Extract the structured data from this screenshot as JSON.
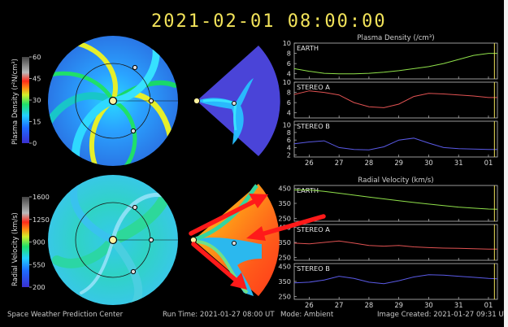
{
  "header": {
    "timestamp": "2021-02-01  08:00:00"
  },
  "colorbars": [
    {
      "title": "Plasma Density (r²N/cm³)",
      "ticks": [
        "60",
        "45",
        "30",
        "15",
        "0"
      ]
    },
    {
      "title": "Radial Velocity (km/s)",
      "ticks": [
        "1600",
        "1250",
        "900",
        "550",
        "200"
      ]
    }
  ],
  "chart_data": [
    {
      "type": "line",
      "title": "Plasma Density (/cm³)",
      "categories": [
        "26",
        "27",
        "28",
        "29",
        "30",
        "31",
        "01"
      ],
      "panels": [
        {
          "name": "EARTH",
          "color": "#8fe04a",
          "yticks": [
            "10",
            "8",
            "6",
            "4"
          ],
          "ylim": [
            3,
            10
          ],
          "x": [
            25.5,
            26.0,
            26.5,
            27.0,
            27.5,
            28.0,
            28.5,
            29.0,
            29.5,
            30.0,
            30.5,
            31.0,
            31.5,
            32.0,
            32.3
          ],
          "y": [
            5.0,
            4.5,
            4.1,
            4.0,
            4.0,
            4.1,
            4.3,
            4.6,
            5.0,
            5.4,
            6.0,
            6.8,
            7.6,
            8.0,
            8.0
          ]
        },
        {
          "name": "STEREO A",
          "color": "#e05252",
          "yticks": [
            "10",
            "8",
            "6",
            "4"
          ],
          "ylim": [
            3,
            10
          ],
          "x": [
            25.5,
            26.0,
            26.5,
            27.0,
            27.5,
            28.0,
            28.5,
            29.0,
            29.5,
            30.0,
            30.5,
            31.0,
            31.5,
            32.0,
            32.3
          ],
          "y": [
            7.6,
            8.3,
            8.0,
            7.5,
            6.0,
            5.2,
            5.0,
            5.7,
            7.2,
            7.8,
            7.7,
            7.5,
            7.3,
            7.0,
            7.0
          ]
        },
        {
          "name": "STEREO B",
          "color": "#5a5ae6",
          "yticks": [
            "10",
            "8",
            "6",
            "4",
            "2"
          ],
          "ylim": [
            1.5,
            11
          ],
          "x": [
            25.5,
            26.0,
            26.5,
            27.0,
            27.5,
            28.0,
            28.5,
            29.0,
            29.5,
            30.0,
            30.5,
            31.0,
            31.5,
            32.0,
            32.3
          ],
          "y": [
            5.0,
            5.5,
            5.8,
            4.0,
            3.5,
            3.4,
            4.2,
            6.0,
            6.5,
            5.2,
            4.0,
            3.7,
            3.6,
            3.5,
            3.5
          ]
        }
      ]
    },
    {
      "type": "line",
      "title": "Radial Velocity (km/s)",
      "categories": [
        "26",
        "27",
        "28",
        "29",
        "30",
        "31",
        "01"
      ],
      "panels": [
        {
          "name": "EARTH",
          "color": "#8fe04a",
          "yticks": [
            "450",
            "350",
            "250"
          ],
          "ylim": [
            230,
            470
          ],
          "x": [
            25.5,
            26.0,
            26.5,
            27.0,
            27.5,
            28.0,
            28.5,
            29.0,
            29.5,
            30.0,
            30.5,
            31.0,
            31.5,
            32.0,
            32.3
          ],
          "y": [
            440,
            440,
            430,
            418,
            405,
            392,
            380,
            368,
            356,
            345,
            335,
            325,
            318,
            312,
            310
          ]
        },
        {
          "name": "STEREO A",
          "color": "#e05252",
          "yticks": [
            "450",
            "350",
            "250"
          ],
          "ylim": [
            230,
            470
          ],
          "x": [
            25.5,
            26.0,
            26.5,
            27.0,
            27.5,
            28.0,
            28.5,
            29.0,
            29.5,
            30.0,
            30.5,
            31.0,
            31.5,
            32.0,
            32.3
          ],
          "y": [
            345,
            340,
            350,
            360,
            345,
            330,
            325,
            330,
            320,
            315,
            312,
            310,
            308,
            305,
            305
          ]
        },
        {
          "name": "STEREO B",
          "color": "#5a5ae6",
          "yticks": [
            "450",
            "350",
            "250"
          ],
          "ylim": [
            230,
            470
          ],
          "x": [
            25.5,
            26.0,
            26.5,
            27.0,
            27.5,
            28.0,
            28.5,
            29.0,
            29.5,
            30.0,
            30.5,
            31.0,
            31.5,
            32.0,
            32.3
          ],
          "y": [
            340,
            345,
            360,
            385,
            370,
            345,
            335,
            355,
            380,
            395,
            392,
            385,
            378,
            370,
            368
          ]
        }
      ]
    }
  ],
  "footer": {
    "org": "Space Weather Prediction Center",
    "run_time": "Run Time: 2021-01-27 08:00 UT",
    "mode": "Mode: Ambient",
    "image_created": "Image Created: 2021-01-27 09:31 UT"
  },
  "colors": {
    "accent_title": "#f2e35a",
    "annotation_arrows": "#ff1a1a"
  }
}
